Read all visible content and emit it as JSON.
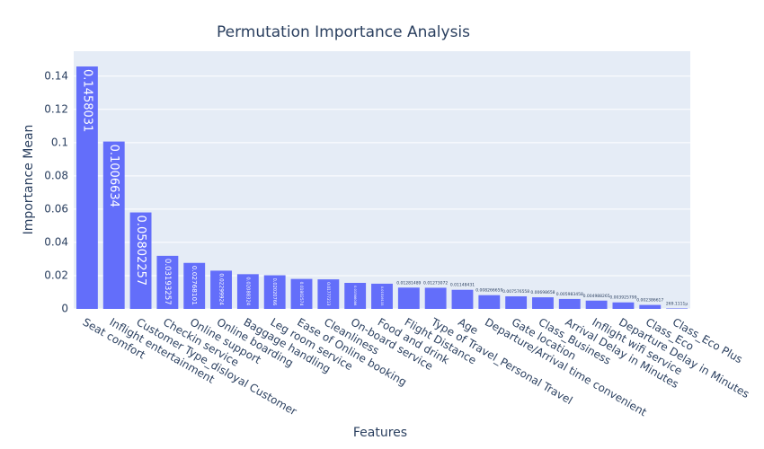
{
  "chart_data": {
    "type": "bar",
    "title": "Permutation Importance Analysis",
    "x_label": "Features",
    "y_label": "Importance Mean",
    "categories": [
      "Seat comfort",
      "Inflight entertainment",
      "Customer Type_disloyal Customer",
      "Checkin service",
      "Online support",
      "Online boarding",
      "Baggage handling",
      "Leg room service",
      "Ease of Online booking",
      "Cleanliness",
      "On-board service",
      "Food and drink",
      "Flight Distance",
      "Type of Travel_Personal Travel",
      "Age",
      "Departure/Arrival time convenient",
      "Gate location",
      "Class_Business",
      "Arrival Delay in Minutes",
      "Inflight wifi service",
      "Departure Delay in Minutes",
      "Class_Eco",
      "Class_Eco Plus"
    ],
    "values": [
      0.1458031,
      0.1006634,
      0.05802257,
      0.03193257,
      0.02768101,
      0.02299924,
      0.02088324,
      0.02020766,
      0.01802574,
      0.01777213,
      0.01566086,
      0.01516133,
      0.01281489,
      0.01273072,
      0.01148431,
      0.008266659,
      0.007576558,
      0.00698658,
      0.005983458,
      0.004988265,
      0.003925799,
      0.002386617,
      0.0002691111
    ],
    "value_labels": [
      "0.1458031",
      "0.1006634",
      "0.05802257",
      "0.03193257",
      "0.02768101",
      "0.02299924",
      "0.02088324",
      "0.02020766",
      "0.01802574",
      "0.01777213",
      "0.01566086",
      "0.01516133",
      "0.01281489",
      "0.01273072",
      "0.01148431",
      "0.008266659",
      "0.007576558",
      "0.00698658",
      "0.005983458",
      "0.004988265",
      "0.003925799",
      "0.002386617",
      "269.1111µ"
    ],
    "color": "#636efa",
    "ylim": [
      0,
      0.155
    ],
    "yticks": [
      0,
      0.02,
      0.04,
      0.06,
      0.08,
      0.1,
      0.12,
      0.14
    ],
    "grid": true
  }
}
